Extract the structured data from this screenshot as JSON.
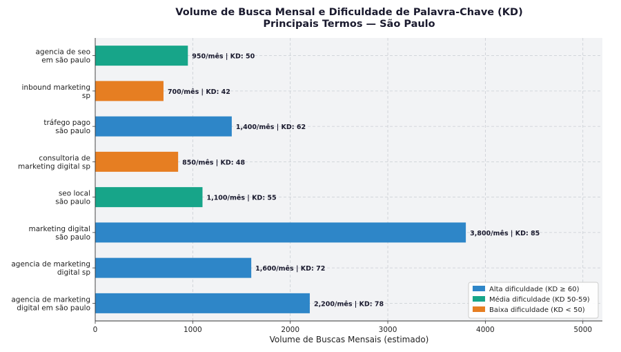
{
  "chart_data": {
    "type": "bar",
    "orientation": "horizontal",
    "title": "Volume de Busca Mensal e Dificuldade de Palavra-Chave (KD)",
    "subtitle": "Principais Termos — São Paulo",
    "xlabel": "Volume de Buscas Mensais (estimado)",
    "ylabel": "",
    "xlim": [
      0,
      5200
    ],
    "xticks": [
      "0",
      "1000",
      "2000",
      "3000",
      "4000",
      "5000"
    ],
    "grid": true,
    "legend_position": "bottom-right",
    "categories": [
      [
        "agencia de seo",
        "em são paulo"
      ],
      [
        "inbound marketing",
        "sp"
      ],
      [
        "tráfego pago",
        "são paulo"
      ],
      [
        "consultoria de",
        "marketing digital sp"
      ],
      [
        "seo local",
        "são paulo"
      ],
      [
        "marketing digital",
        "são paulo"
      ],
      [
        "agencia de marketing",
        "digital sp"
      ],
      [
        "agencia de marketing",
        "digital em são paulo"
      ]
    ],
    "values": [
      950,
      700,
      1400,
      850,
      1100,
      3800,
      1600,
      2200
    ],
    "kd": [
      50,
      42,
      62,
      48,
      55,
      85,
      72,
      78
    ],
    "difficulty": [
      "media",
      "baixa",
      "alta",
      "baixa",
      "media",
      "alta",
      "alta",
      "alta"
    ],
    "data_labels": [
      "950/mês  |  KD: 50",
      "700/mês  |  KD: 42",
      "1,400/mês  |  KD: 62",
      "850/mês  |  KD: 48",
      "1,100/mês  |  KD: 55",
      "3,800/mês  |  KD: 85",
      "1,600/mês  |  KD: 72",
      "2,200/mês  |  KD: 78"
    ],
    "colors": {
      "alta": "#2e86c8",
      "media": "#17a589",
      "baixa": "#e67e22"
    },
    "legend": [
      {
        "key": "alta",
        "label": "Alta dificuldade (KD ≥ 60)"
      },
      {
        "key": "media",
        "label": "Média dificuldade (KD 50-59)"
      },
      {
        "key": "baixa",
        "label": "Baixa dificuldade (KD < 50)"
      }
    ],
    "plot_background": "#f2f3f5"
  }
}
